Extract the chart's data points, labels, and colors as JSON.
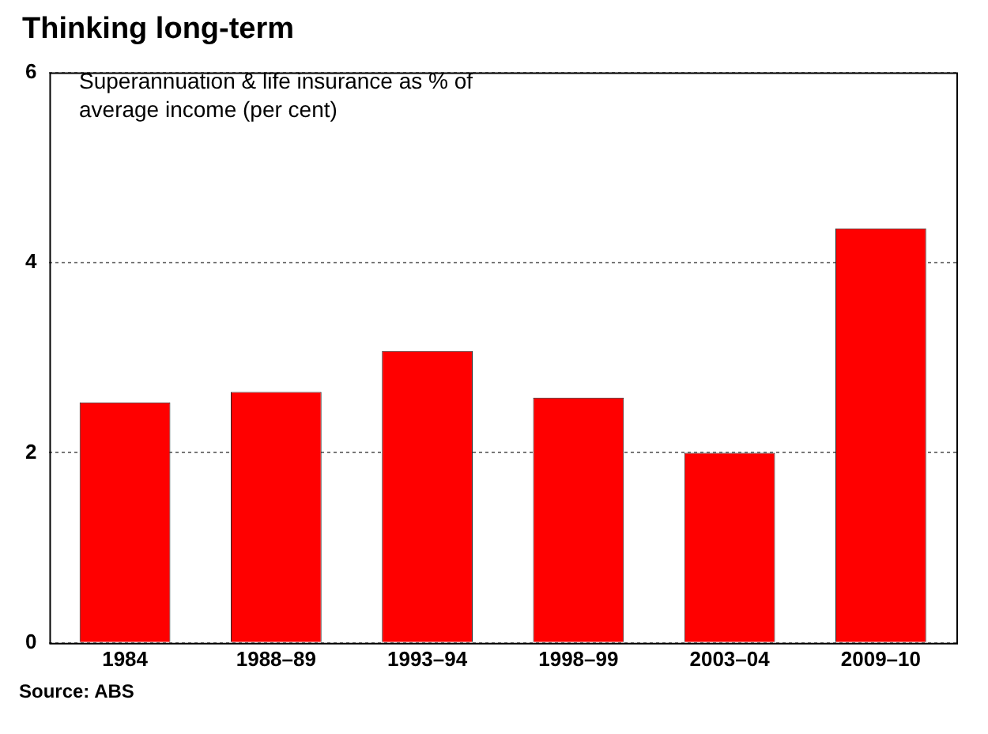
{
  "chart_data": {
    "type": "bar",
    "title": "Thinking long-term",
    "categories": [
      "1984",
      "1988–89",
      "1993–94",
      "1998–99",
      "2003–04",
      "2009–10"
    ],
    "values": [
      2.53,
      2.64,
      3.07,
      2.58,
      2.0,
      4.36
    ],
    "color": "#ff0000",
    "ylim": [
      0,
      6
    ],
    "yticks": [
      0,
      2,
      4,
      6
    ],
    "grid": "y",
    "annotations": [
      "Superannuation & life insurance as % of average income (per cent)",
      "Source: ABS"
    ]
  }
}
